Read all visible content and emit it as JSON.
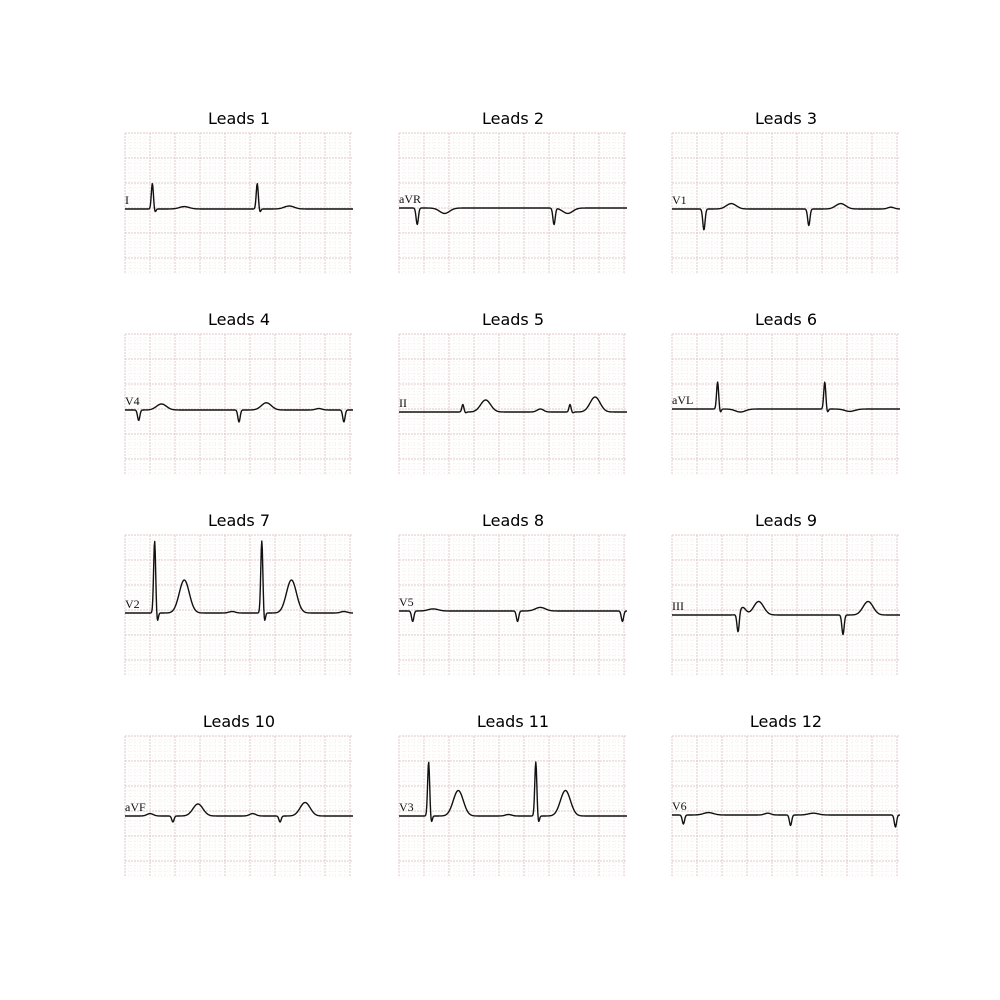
{
  "chart_data": {
    "type": "line",
    "grid": true,
    "panels": [
      {
        "title": "Leads 1",
        "lead": "I",
        "baseline": 0.0,
        "events": [
          [
            0.12,
            "r",
            0.85
          ],
          [
            0.58,
            "r",
            0.85
          ],
          [
            0.26,
            "t",
            0.08
          ],
          [
            0.72,
            "t",
            0.1
          ]
        ]
      },
      {
        "title": "Leads 2",
        "lead": "aVR",
        "baseline": 0.0,
        "events": [
          [
            0.08,
            "q",
            -0.55
          ],
          [
            0.68,
            "q",
            -0.55
          ],
          [
            0.2,
            "t",
            -0.18
          ],
          [
            0.74,
            "t",
            -0.18
          ]
        ]
      },
      {
        "title": "Leads 3",
        "lead": "V1",
        "baseline": 0.0,
        "events": [
          [
            0.14,
            "q",
            -0.7
          ],
          [
            0.6,
            "q",
            -0.55
          ],
          [
            0.26,
            "t",
            0.18
          ],
          [
            0.74,
            "t",
            0.18
          ],
          [
            0.96,
            "p",
            0.06
          ]
        ]
      },
      {
        "title": "Leads 4",
        "lead": "V4",
        "baseline": 0.0,
        "events": [
          [
            0.06,
            "q",
            -0.35
          ],
          [
            0.5,
            "q",
            -0.4
          ],
          [
            0.96,
            "q",
            -0.4
          ],
          [
            0.16,
            "t",
            0.2
          ],
          [
            0.62,
            "t",
            0.24
          ],
          [
            0.85,
            "p",
            0.05
          ]
        ]
      },
      {
        "title": "Leads 5",
        "lead": "II",
        "baseline": 0.0,
        "events": [
          [
            0.28,
            "r",
            0.25
          ],
          [
            0.75,
            "r",
            0.25
          ],
          [
            0.38,
            "t",
            0.4
          ],
          [
            0.86,
            "t",
            0.5
          ],
          [
            0.62,
            "p",
            0.1
          ]
        ]
      },
      {
        "title": "Leads 6",
        "lead": "aVL",
        "baseline": 0.0,
        "events": [
          [
            0.2,
            "r",
            0.9
          ],
          [
            0.67,
            "r",
            0.9
          ],
          [
            0.3,
            "t",
            -0.1
          ],
          [
            0.78,
            "t",
            -0.08
          ]
        ]
      },
      {
        "title": "Leads 7",
        "lead": "V2",
        "baseline": 0.0,
        "events": [
          [
            0.13,
            "r",
            2.4
          ],
          [
            0.6,
            "r",
            2.4
          ],
          [
            0.26,
            "t",
            1.1
          ],
          [
            0.73,
            "t",
            1.1
          ],
          [
            0.47,
            "p",
            0.05
          ],
          [
            0.96,
            "p",
            0.05
          ]
        ]
      },
      {
        "title": "Leads 8",
        "lead": "V5",
        "baseline": 0.0,
        "events": [
          [
            0.06,
            "q",
            -0.35
          ],
          [
            0.52,
            "q",
            -0.35
          ],
          [
            0.98,
            "q",
            -0.35
          ],
          [
            0.15,
            "t",
            0.07
          ],
          [
            0.62,
            "t",
            0.12
          ]
        ]
      },
      {
        "title": "Leads 9",
        "lead": "III",
        "baseline": 0.0,
        "events": [
          [
            0.29,
            "q",
            -0.65
          ],
          [
            0.75,
            "q",
            -0.65
          ],
          [
            0.38,
            "t",
            0.45
          ],
          [
            0.86,
            "t",
            0.45
          ],
          [
            0.31,
            "p",
            0.25
          ]
        ]
      },
      {
        "title": "Leads 10",
        "lead": "aVF",
        "baseline": 0.0,
        "events": [
          [
            0.21,
            "q",
            -0.2
          ],
          [
            0.68,
            "q",
            -0.2
          ],
          [
            0.32,
            "t",
            0.4
          ],
          [
            0.79,
            "t",
            0.45
          ],
          [
            0.11,
            "p",
            0.08
          ],
          [
            0.56,
            "p",
            0.08
          ]
        ]
      },
      {
        "title": "Leads 11",
        "lead": "V3",
        "baseline": 0.0,
        "events": [
          [
            0.13,
            "r",
            1.8
          ],
          [
            0.6,
            "r",
            1.8
          ],
          [
            0.26,
            "t",
            0.85
          ],
          [
            0.73,
            "t",
            0.85
          ],
          [
            0.48,
            "p",
            0.05
          ]
        ]
      },
      {
        "title": "Leads 12",
        "lead": "V6",
        "baseline": 0.0,
        "events": [
          [
            0.05,
            "q",
            -0.3
          ],
          [
            0.52,
            "q",
            -0.35
          ],
          [
            0.98,
            "q",
            -0.4
          ],
          [
            0.16,
            "t",
            0.08
          ],
          [
            0.42,
            "p",
            0.06
          ],
          [
            0.62,
            "t",
            0.06
          ]
        ]
      }
    ]
  },
  "colors": {
    "grid_minor": "#f0dede",
    "grid_major": "#e3c8c8",
    "trace": "#111111",
    "title": "#000000"
  }
}
